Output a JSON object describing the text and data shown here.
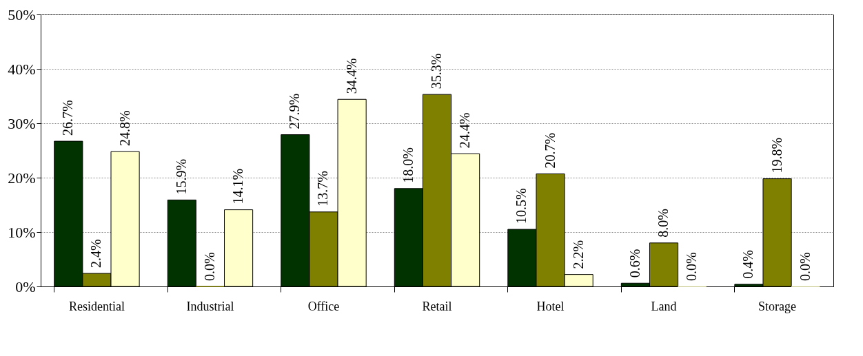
{
  "chart_data": {
    "type": "bar",
    "categories": [
      "Residential",
      "Industrial",
      "Office",
      "Retail",
      "Hotel",
      "Land",
      "Storage"
    ],
    "series": [
      {
        "color": "#003300",
        "values": [
          26.7,
          15.9,
          27.9,
          18.0,
          10.5,
          0.6,
          0.4
        ],
        "value_labels": [
          "26.7%",
          "15.9%",
          "27.9%",
          "18.0%",
          "10.5%",
          "0.6%",
          "0.4%"
        ]
      },
      {
        "color": "#808000",
        "values": [
          2.4,
          0.0,
          13.7,
          35.3,
          20.7,
          8.0,
          19.8
        ],
        "value_labels": [
          "2.4%",
          "0.0%",
          "13.7%",
          "35.3%",
          "20.7%",
          "8.0%",
          "19.8%"
        ]
      },
      {
        "color": "#ffffcc",
        "values": [
          24.8,
          14.1,
          34.4,
          24.4,
          2.2,
          0.0,
          0.0
        ],
        "value_labels": [
          "24.8%",
          "14.1%",
          "34.4%",
          "24.4%",
          "2.2%",
          "0.0%",
          "0.0%"
        ]
      }
    ],
    "ylim": [
      0,
      50
    ],
    "yticks": [
      {
        "value": 0,
        "label": "0%"
      },
      {
        "value": 10,
        "label": "10%"
      },
      {
        "value": 20,
        "label": "20%"
      },
      {
        "value": 30,
        "label": "30%"
      },
      {
        "value": 40,
        "label": "40%"
      },
      {
        "value": 50,
        "label": "50%"
      }
    ],
    "grid": "y"
  }
}
